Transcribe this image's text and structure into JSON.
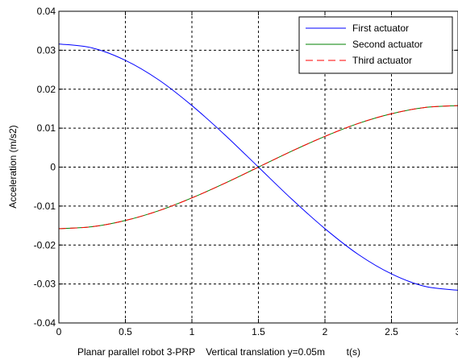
{
  "chart_data": {
    "type": "line",
    "xlabel": "Planar parallel robot 3-PRP    Vertical translation y=0.05m        t(s)",
    "ylabel": "Acceleration (m/s2)",
    "xlim": [
      0,
      3
    ],
    "ylim": [
      -0.04,
      0.04
    ],
    "x_ticks": [
      0,
      0.5,
      1,
      1.5,
      2,
      2.5,
      3
    ],
    "x_tick_labels": [
      "0",
      "0.5",
      "1",
      "1.5",
      "2",
      "2.5",
      "3"
    ],
    "y_ticks": [
      0.04,
      0.03,
      0.02,
      0.01,
      0,
      -0.01,
      -0.02,
      -0.03,
      -0.04
    ],
    "y_tick_labels": [
      "0.04",
      "0.03",
      "0.02",
      "0.01",
      "0",
      "-0.01",
      "-0.02",
      "-0.03",
      "-0.04"
    ],
    "grid": true,
    "legend_position": "top-right",
    "x": [
      0,
      0.25,
      0.5,
      0.75,
      1,
      1.25,
      1.5,
      1.75,
      2,
      2.25,
      2.5,
      2.75,
      3
    ],
    "series": [
      {
        "name": "First actuator",
        "color": "#0000ff",
        "dash": "solid",
        "values": [
          0.0316,
          0.0306,
          0.0274,
          0.0224,
          0.0158,
          0.0082,
          0.0,
          -0.0082,
          -0.0158,
          -0.0224,
          -0.0274,
          -0.0306,
          -0.0316
        ]
      },
      {
        "name": "Second actuator",
        "color": "#008000",
        "dash": "solid",
        "values": [
          -0.0158,
          -0.0153,
          -0.0137,
          -0.0112,
          -0.0079,
          -0.0041,
          0.0,
          0.0041,
          0.0079,
          0.0112,
          0.0137,
          0.0153,
          0.0158
        ]
      },
      {
        "name": "Third actuator",
        "color": "#ff0000",
        "dash": "dashed",
        "values": [
          -0.0158,
          -0.0153,
          -0.0137,
          -0.0112,
          -0.0079,
          -0.0041,
          0.0,
          0.0041,
          0.0079,
          0.0112,
          0.0137,
          0.0153,
          0.0158
        ]
      }
    ]
  }
}
